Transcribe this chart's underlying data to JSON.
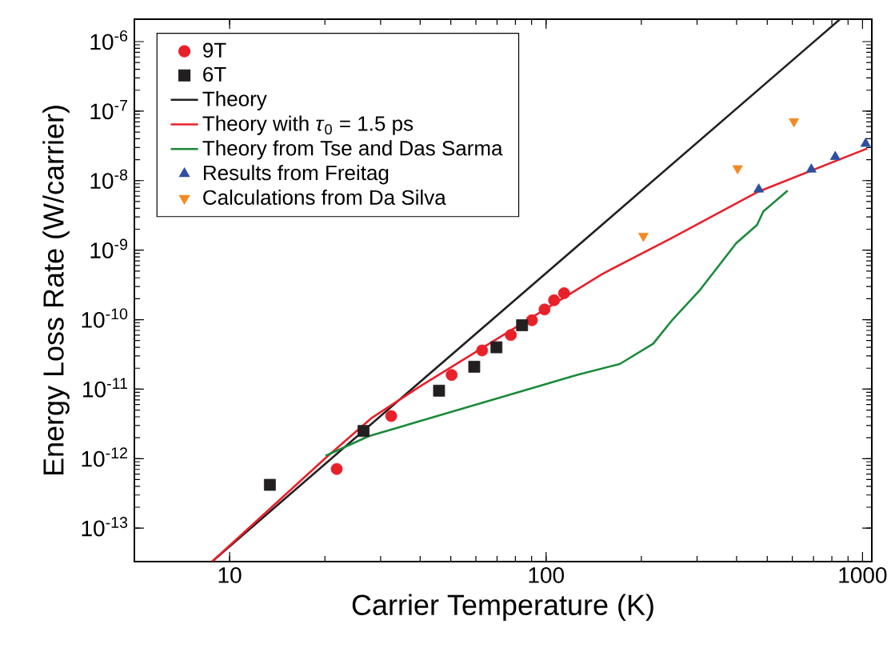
{
  "chart_data": {
    "type": "scatter",
    "xlabel": "Carrier Temperature (K)",
    "ylabel": "Energy Loss Rate (W/carrier)",
    "log": "xy",
    "legend": "top left",
    "xlim": [
      5,
      1070
    ],
    "ylim": [
      3.3e-14,
      2.1e-06
    ],
    "xticks": [
      10,
      100,
      1000
    ],
    "yticks": [
      {
        "value": 1e-13,
        "label": "10$^{-13}$"
      },
      {
        "value": 1e-12,
        "label": "10$^{-12}$"
      },
      {
        "value": 1e-11,
        "label": "10$^{-11}$"
      },
      {
        "value": 1e-10,
        "label": "10$^{-10}$"
      },
      {
        "value": 1e-09,
        "label": "10$^{-9}$"
      },
      {
        "value": 1e-08,
        "label": "10$^{-8}$"
      },
      {
        "value": 1e-07,
        "label": "10$^{-7}$"
      },
      {
        "value": 1e-06,
        "label": "10$^{-6}$"
      }
    ],
    "series": [
      {
        "name": "9T",
        "marker": "circle",
        "color": "#e8202a",
        "x": [
          21.8,
          32.4,
          50.3,
          62.8,
          77.4,
          90.2,
          98.9,
          106,
          114
        ],
        "values": [
          7.1e-13,
          4.1e-12,
          1.6e-11,
          3.6e-11,
          6e-11,
          9.8e-11,
          1.4e-10,
          1.9e-10,
          2.4e-10
        ]
      },
      {
        "name": "6T",
        "marker": "square",
        "color": "#231f20",
        "x": [
          13.4,
          26.5,
          45.9,
          59.3,
          69.7,
          84.0
        ],
        "values": [
          4.2e-13,
          2.5e-12,
          9.5e-12,
          2.1e-11,
          4e-11,
          8.3e-11
        ]
      },
      {
        "name": "Theory",
        "type": "line",
        "color": "#231f20",
        "x": [
          8.8,
          849
        ],
        "values": [
          3.3e-14,
          2.1e-06
        ]
      },
      {
        "name": "Theory with *τ*$_{0}$ = 1.5 ps",
        "type": "line",
        "color": "#e8202a",
        "x": [
          8.8,
          20,
          28,
          40,
          150,
          250,
          464,
          1035
        ],
        "values": [
          3.3e-14,
          1e-12,
          3.8e-12,
          1.1e-11,
          4.5e-10,
          1.5e-09,
          6.8e-09,
          2.9e-08
        ]
      },
      {
        "name": "Theory from Tse and Das Sarma",
        "type": "line",
        "color": "#1a8a3a",
        "x": [
          20.1,
          27.5,
          88,
          125,
          171,
          218,
          251,
          305,
          399,
          464,
          486,
          580
        ],
        "values": [
          1.1e-12,
          2.1e-12,
          1e-11,
          1.6e-11,
          2.3e-11,
          4.5e-11,
          1e-10,
          2.6e-10,
          1.26e-09,
          2.3e-09,
          3.6e-09,
          7.2e-09
        ]
      },
      {
        "name": "Results from Freitag",
        "marker": "triangle",
        "color": "#2e4fa0",
        "x": [
          470,
          689,
          820,
          1023
        ],
        "values": [
          7.5e-09,
          1.45e-08,
          2.2e-08,
          3.4e-08
        ]
      },
      {
        "name": "Calculations from Da Silva",
        "marker": "triangle-down",
        "color": "#f28a24",
        "x": [
          203,
          403,
          607
        ],
        "values": [
          1.6e-09,
          1.5e-08,
          7.1e-08
        ]
      }
    ]
  }
}
